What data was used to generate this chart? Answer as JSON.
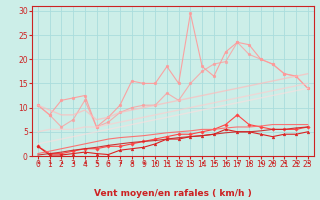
{
  "xlabel": "Vent moyen/en rafales ( km/h )",
  "bg_color": "#cceee8",
  "grid_color": "#aadddd",
  "x": [
    0,
    1,
    2,
    3,
    4,
    5,
    6,
    7,
    8,
    9,
    10,
    11,
    12,
    13,
    14,
    15,
    16,
    17,
    18,
    19,
    20,
    21,
    22,
    23
  ],
  "ylim": [
    0,
    31
  ],
  "xlim": [
    -0.5,
    23.5
  ],
  "yticks": [
    0,
    5,
    10,
    15,
    20,
    25,
    30
  ],
  "lines": [
    {
      "color": "#ff9999",
      "alpha": 0.9,
      "linewidth": 0.8,
      "marker": "o",
      "markersize": 2.0,
      "values": [
        10.5,
        8.5,
        11.5,
        12.0,
        12.5,
        6.0,
        8.0,
        10.5,
        15.5,
        15.0,
        15.0,
        18.5,
        15.0,
        29.5,
        18.5,
        16.5,
        21.5,
        23.5,
        23.0,
        20.0,
        19.0,
        17.0,
        16.5,
        14.0
      ]
    },
    {
      "color": "#ff9999",
      "alpha": 0.75,
      "linewidth": 0.8,
      "marker": "o",
      "markersize": 2.0,
      "values": [
        10.5,
        8.5,
        6.0,
        7.5,
        11.5,
        6.0,
        7.0,
        9.0,
        10.0,
        10.5,
        10.5,
        13.0,
        11.5,
        15.0,
        17.5,
        19.0,
        19.5,
        23.5,
        21.0,
        20.0,
        19.0,
        17.0,
        16.5,
        14.0
      ]
    },
    {
      "color": "#ffbbbb",
      "alpha": 0.7,
      "linewidth": 1.0,
      "marker": null,
      "markersize": 0,
      "values": [
        10.5,
        9.5,
        8.5,
        8.5,
        9.5,
        7.5,
        8.0,
        9.0,
        9.5,
        10.0,
        10.5,
        11.0,
        11.5,
        12.0,
        12.5,
        13.0,
        13.5,
        14.0,
        14.5,
        15.0,
        15.5,
        16.0,
        16.5,
        17.0
      ]
    },
    {
      "color": "#ffcccc",
      "alpha": 0.65,
      "linewidth": 1.0,
      "marker": null,
      "markersize": 0,
      "values": [
        5.0,
        5.5,
        5.5,
        5.5,
        6.0,
        6.0,
        6.5,
        7.0,
        7.5,
        8.0,
        8.5,
        9.0,
        9.5,
        10.0,
        10.5,
        11.0,
        11.5,
        12.0,
        12.5,
        13.0,
        13.5,
        14.0,
        14.5,
        15.0
      ]
    },
    {
      "color": "#ffdddd",
      "alpha": 0.6,
      "linewidth": 1.0,
      "marker": null,
      "markersize": 0,
      "values": [
        2.5,
        3.0,
        3.5,
        4.0,
        4.5,
        5.0,
        5.5,
        6.0,
        6.5,
        7.0,
        7.5,
        8.0,
        8.5,
        9.0,
        9.5,
        10.0,
        10.5,
        11.0,
        11.5,
        12.0,
        12.5,
        13.0,
        13.5,
        14.0
      ]
    },
    {
      "color": "#ff4444",
      "alpha": 1.0,
      "linewidth": 0.8,
      "marker": "D",
      "markersize": 1.8,
      "values": [
        2.0,
        0.5,
        0.5,
        1.0,
        1.5,
        1.5,
        2.0,
        2.0,
        2.5,
        3.0,
        3.5,
        4.0,
        4.5,
        4.5,
        5.0,
        5.5,
        6.5,
        8.5,
        6.5,
        6.0,
        5.5,
        5.5,
        5.5,
        6.0
      ]
    },
    {
      "color": "#dd2222",
      "alpha": 1.0,
      "linewidth": 0.8,
      "marker": "^",
      "markersize": 2.0,
      "values": [
        2.0,
        0.2,
        0.2,
        0.5,
        0.8,
        0.5,
        0.3,
        1.2,
        1.5,
        1.8,
        2.5,
        3.5,
        3.5,
        4.0,
        4.2,
        4.5,
        5.5,
        5.0,
        5.0,
        4.5,
        4.0,
        4.5,
        4.5,
        5.0
      ]
    },
    {
      "color": "#ff6666",
      "alpha": 0.9,
      "linewidth": 0.8,
      "marker": null,
      "markersize": 0,
      "values": [
        0.5,
        1.0,
        1.5,
        2.0,
        2.5,
        3.0,
        3.5,
        3.8,
        4.0,
        4.2,
        4.5,
        4.8,
        5.0,
        5.2,
        5.5,
        5.5,
        5.8,
        6.0,
        6.0,
        6.2,
        6.5,
        6.5,
        6.5,
        6.5
      ]
    },
    {
      "color": "#cc2222",
      "alpha": 0.9,
      "linewidth": 0.8,
      "marker": null,
      "markersize": 0,
      "values": [
        0.2,
        0.5,
        0.8,
        1.2,
        1.5,
        1.8,
        2.2,
        2.5,
        2.8,
        3.0,
        3.2,
        3.5,
        3.8,
        4.0,
        4.2,
        4.5,
        4.8,
        5.0,
        5.0,
        5.2,
        5.5,
        5.5,
        5.8,
        6.0
      ]
    }
  ],
  "tick_fontsize": 5.5,
  "label_fontsize": 6.5
}
